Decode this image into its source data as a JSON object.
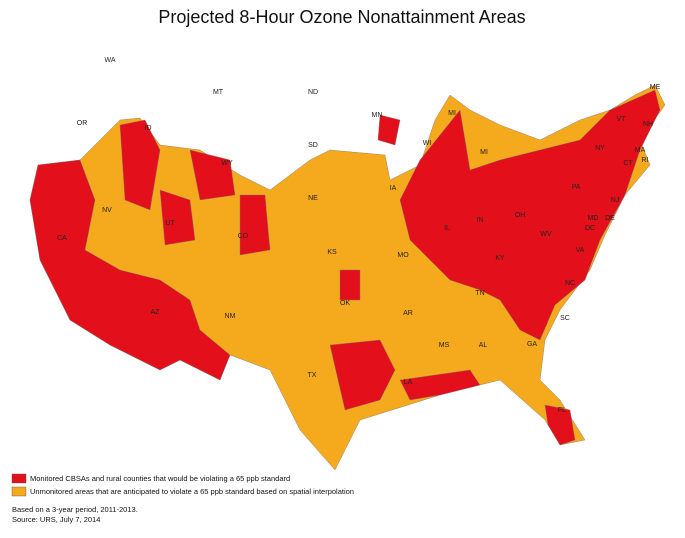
{
  "title": "Projected 8-Hour Ozone Nonattainment Areas",
  "map": {
    "state_labels": [
      "WA",
      "MT",
      "ND",
      "OR",
      "ID",
      "MN",
      "MI",
      "WY",
      "SD",
      "WI",
      "MI",
      "NV",
      "UT",
      "CO",
      "CA",
      "NE",
      "IA",
      "IL",
      "IN",
      "OH",
      "KS",
      "MO",
      "KY",
      "WV",
      "VA",
      "OK",
      "AZ",
      "NM",
      "AR",
      "TN",
      "NC",
      "SC",
      "MS",
      "AL",
      "GA",
      "TX",
      "LA",
      "FL",
      "NY",
      "PA",
      "VT",
      "NH",
      "ME",
      "MA",
      "CT",
      "RI",
      "NJ",
      "DE",
      "MD",
      "DC"
    ]
  },
  "legend": [
    {
      "label": "Monitored CBSAs and rural counties that would be violating a 65 ppb standard",
      "color": "#e3101b"
    },
    {
      "label": "Unmonitored areas that are anticipated to violate a 65 ppb standard based on spatial interpolation",
      "color": "#f5a91c"
    }
  ],
  "notes": [
    "Based on a 3-year period, 2011-2013.",
    "Source:  URS, July 7, 2014"
  ]
}
